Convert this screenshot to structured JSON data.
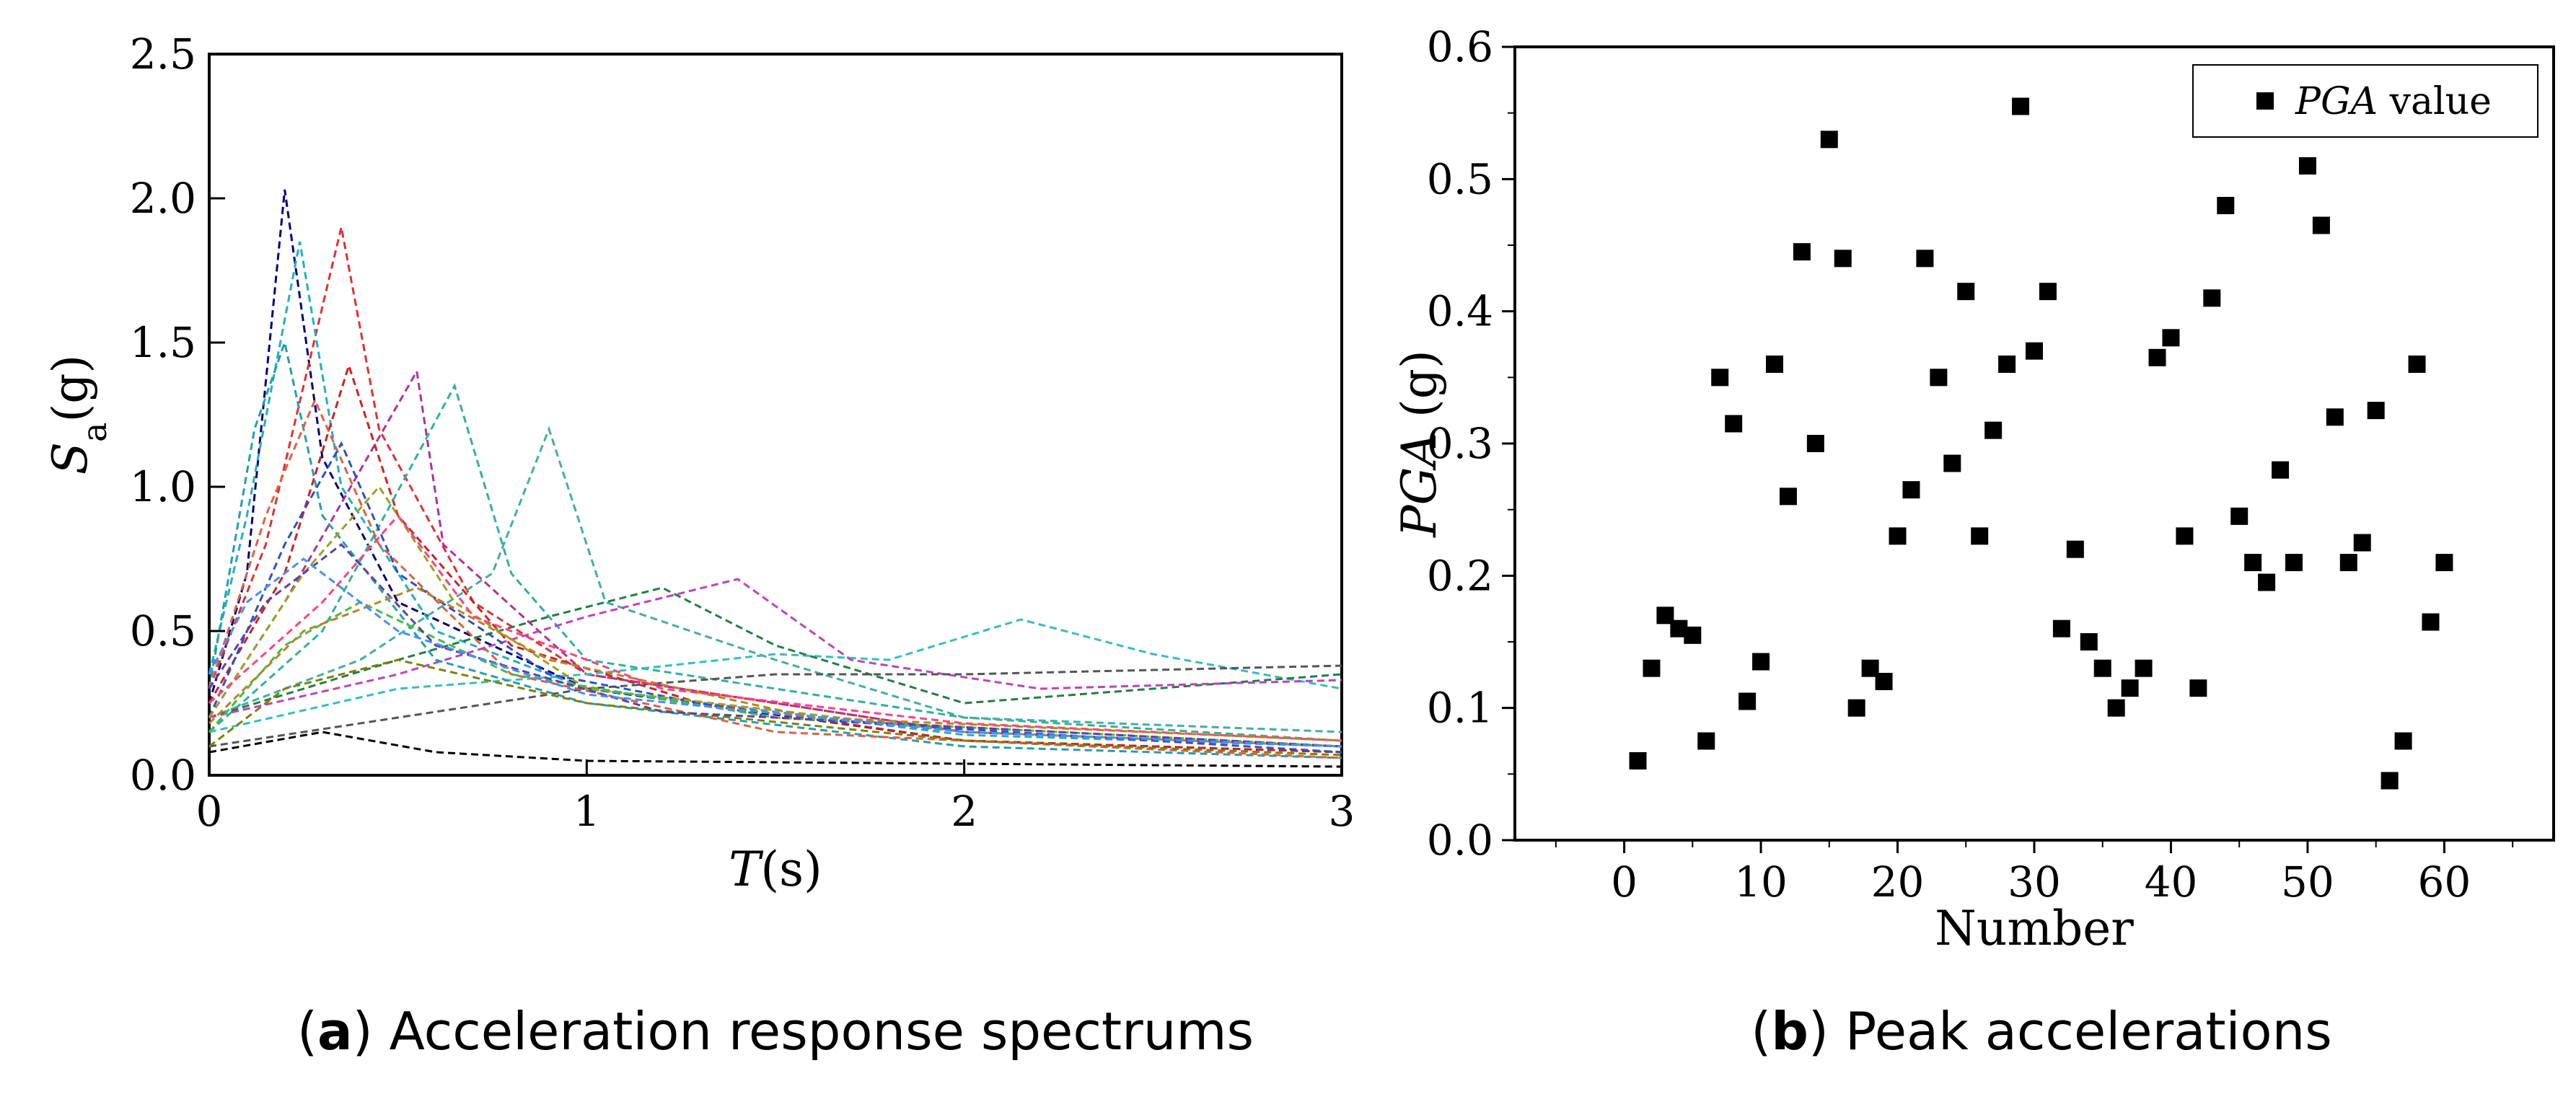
{
  "chart_data": [
    {
      "type": "line",
      "panel": "a",
      "caption_letter": "a",
      "caption": "Acceleration response spectrums",
      "xlabel_italic": "T",
      "xlabel_unit": "(s)",
      "ylabel_main": "S",
      "ylabel_sub": "a",
      "ylabel_unit": "(g)",
      "xlim": [
        0,
        3
      ],
      "ylim": [
        0,
        2.5
      ],
      "x_ticks": [
        "0",
        "1",
        "2",
        "3"
      ],
      "y_ticks": [
        "0.0",
        "0.5",
        "1.0",
        "1.5",
        "2.0",
        "2.5"
      ],
      "series_count": 60,
      "representative_series": [
        {
          "color": "#000080",
          "points": [
            [
              0,
              0.25
            ],
            [
              0.1,
              0.7
            ],
            [
              0.2,
              2.03
            ],
            [
              0.3,
              1.1
            ],
            [
              0.5,
              0.6
            ],
            [
              1,
              0.3
            ],
            [
              2,
              0.12
            ],
            [
              3,
              0.08
            ]
          ]
        },
        {
          "color": "#e03030",
          "points": [
            [
              0,
              0.3
            ],
            [
              0.15,
              0.8
            ],
            [
              0.35,
              1.9
            ],
            [
              0.45,
              1.2
            ],
            [
              0.7,
              0.6
            ],
            [
              1,
              0.35
            ],
            [
              2,
              0.15
            ],
            [
              3,
              0.1
            ]
          ]
        },
        {
          "color": "#20b0c0",
          "points": [
            [
              0,
              0.35
            ],
            [
              0.1,
              0.9
            ],
            [
              0.24,
              1.85
            ],
            [
              0.35,
              1.0
            ],
            [
              0.6,
              0.5
            ],
            [
              1,
              0.3
            ],
            [
              2,
              0.14
            ],
            [
              3,
              0.1
            ]
          ]
        },
        {
          "color": "#d02020",
          "points": [
            [
              0,
              0.25
            ],
            [
              0.2,
              0.7
            ],
            [
              0.37,
              1.42
            ],
            [
              0.5,
              0.9
            ],
            [
              0.8,
              0.45
            ],
            [
              1.3,
              0.25
            ],
            [
              2,
              0.12
            ],
            [
              3,
              0.08
            ]
          ]
        },
        {
          "color": "#b030a0",
          "points": [
            [
              0,
              0.2
            ],
            [
              0.2,
              0.6
            ],
            [
              0.55,
              1.4
            ],
            [
              0.62,
              0.8
            ],
            [
              1,
              0.35
            ],
            [
              2,
              0.15
            ],
            [
              3,
              0.1
            ]
          ]
        },
        {
          "color": "#30b0a0",
          "points": [
            [
              0,
              0.15
            ],
            [
              0.3,
              0.5
            ],
            [
              0.65,
              1.35
            ],
            [
              0.8,
              0.7
            ],
            [
              1,
              0.4
            ],
            [
              2,
              0.2
            ],
            [
              3,
              0.12
            ]
          ]
        },
        {
          "color": "#40b0a0",
          "points": [
            [
              0,
              0.2
            ],
            [
              0.4,
              0.4
            ],
            [
              0.75,
              0.7
            ],
            [
              0.9,
              1.2
            ],
            [
              1.05,
              0.6
            ],
            [
              1.5,
              0.4
            ],
            [
              2,
              0.2
            ],
            [
              3,
              0.15
            ]
          ]
        },
        {
          "color": "#30c0c0",
          "points": [
            [
              0,
              0.15
            ],
            [
              0.5,
              0.3
            ],
            [
              1,
              0.35
            ],
            [
              1.5,
              0.42
            ],
            [
              1.8,
              0.4
            ],
            [
              2.15,
              0.54
            ],
            [
              2.5,
              0.42
            ],
            [
              3,
              0.3
            ]
          ]
        },
        {
          "color": "#208040",
          "points": [
            [
              0,
              0.2
            ],
            [
              0.5,
              0.4
            ],
            [
              0.9,
              0.55
            ],
            [
              1.2,
              0.65
            ],
            [
              1.5,
              0.45
            ],
            [
              2,
              0.25
            ],
            [
              2.5,
              0.3
            ],
            [
              3,
              0.35
            ]
          ]
        },
        {
          "color": "#c040c0",
          "points": [
            [
              0,
              0.2
            ],
            [
              0.5,
              0.35
            ],
            [
              1,
              0.55
            ],
            [
              1.4,
              0.68
            ],
            [
              1.7,
              0.4
            ],
            [
              2.2,
              0.3
            ],
            [
              3,
              0.33
            ]
          ]
        },
        {
          "color": "#555555",
          "points": [
            [
              0,
              0.1
            ],
            [
              0.5,
              0.2
            ],
            [
              1,
              0.3
            ],
            [
              1.5,
              0.35
            ],
            [
              2,
              0.35
            ],
            [
              3,
              0.38
            ]
          ]
        },
        {
          "color": "#20a0b0",
          "points": [
            [
              0,
              0.3
            ],
            [
              0.12,
              1.2
            ],
            [
              0.2,
              1.5
            ],
            [
              0.3,
              0.9
            ],
            [
              0.6,
              0.4
            ],
            [
              1,
              0.25
            ],
            [
              2,
              0.1
            ],
            [
              3,
              0.06
            ]
          ]
        },
        {
          "color": "#e06040",
          "points": [
            [
              0,
              0.3
            ],
            [
              0.15,
              0.9
            ],
            [
              0.28,
              1.3
            ],
            [
              0.45,
              0.8
            ],
            [
              0.8,
              0.35
            ],
            [
              1.5,
              0.15
            ],
            [
              3,
              0.06
            ]
          ]
        },
        {
          "color": "#3050c0",
          "points": [
            [
              0,
              0.2
            ],
            [
              0.2,
              0.8
            ],
            [
              0.35,
              1.15
            ],
            [
              0.5,
              0.7
            ],
            [
              0.9,
              0.35
            ],
            [
              1.5,
              0.2
            ],
            [
              3,
              0.08
            ]
          ]
        },
        {
          "color": "#a0a020",
          "points": [
            [
              0,
              0.2
            ],
            [
              0.25,
              0.7
            ],
            [
              0.45,
              1.0
            ],
            [
              0.65,
              0.6
            ],
            [
              1,
              0.3
            ],
            [
              2,
              0.15
            ],
            [
              3,
              0.1
            ]
          ]
        },
        {
          "color": "#ff4080",
          "points": [
            [
              0,
              0.25
            ],
            [
              0.3,
              0.6
            ],
            [
              0.5,
              0.9
            ],
            [
              0.7,
              0.55
            ],
            [
              1.2,
              0.3
            ],
            [
              2,
              0.18
            ],
            [
              3,
              0.12
            ]
          ]
        },
        {
          "color": "#40c040",
          "points": [
            [
              0,
              0.15
            ],
            [
              0.2,
              0.45
            ],
            [
              0.4,
              0.6
            ],
            [
              0.8,
              0.35
            ],
            [
              1.5,
              0.2
            ],
            [
              3,
              0.1
            ]
          ]
        },
        {
          "color": "#808000",
          "points": [
            [
              0,
              0.1
            ],
            [
              0.2,
              0.3
            ],
            [
              0.5,
              0.4
            ],
            [
              1,
              0.25
            ],
            [
              2,
              0.12
            ],
            [
              3,
              0.07
            ]
          ]
        },
        {
          "color": "#000000",
          "points": [
            [
              0,
              0.08
            ],
            [
              0.3,
              0.15
            ],
            [
              0.6,
              0.08
            ],
            [
              1,
              0.05
            ],
            [
              2,
              0.04
            ],
            [
              3,
              0.03
            ]
          ]
        },
        {
          "color": "#6040a0",
          "points": [
            [
              0,
              0.3
            ],
            [
              0.15,
              0.6
            ],
            [
              0.35,
              0.8
            ],
            [
              0.6,
              0.45
            ],
            [
              1.2,
              0.22
            ],
            [
              3,
              0.1
            ]
          ]
        },
        {
          "color": "#c08020",
          "points": [
            [
              0,
              0.18
            ],
            [
              0.25,
              0.5
            ],
            [
              0.55,
              0.65
            ],
            [
              0.9,
              0.4
            ],
            [
              1.6,
              0.2
            ],
            [
              3,
              0.12
            ]
          ]
        },
        {
          "color": "#4090ff",
          "points": [
            [
              0,
              0.35
            ],
            [
              0.1,
              0.6
            ],
            [
              0.25,
              0.75
            ],
            [
              0.5,
              0.5
            ],
            [
              1,
              0.28
            ],
            [
              2,
              0.15
            ],
            [
              3,
              0.1
            ]
          ]
        }
      ]
    },
    {
      "type": "scatter",
      "panel": "b",
      "caption_letter": "b",
      "caption": "Peak accelerations",
      "xlabel": "Number",
      "ylabel_italic": "PGA",
      "ylabel_unit": "(g)",
      "xlim": [
        -8,
        68
      ],
      "ylim": [
        0,
        0.6
      ],
      "x_ticks": [
        "0",
        "10",
        "20",
        "30",
        "40",
        "50",
        "60"
      ],
      "y_ticks": [
        "0.0",
        "0.1",
        "0.2",
        "0.3",
        "0.4",
        "0.5",
        "0.6"
      ],
      "legend_italic": "PGA",
      "legend_rest": "value",
      "legend_position": "top-right",
      "x": [
        1,
        2,
        3,
        4,
        5,
        6,
        7,
        8,
        9,
        10,
        11,
        12,
        13,
        14,
        15,
        16,
        17,
        18,
        19,
        20,
        21,
        22,
        23,
        24,
        25,
        26,
        27,
        28,
        29,
        30,
        31,
        32,
        33,
        34,
        35,
        36,
        37,
        38,
        39,
        40,
        41,
        42,
        43,
        44,
        45,
        46,
        47,
        48,
        49,
        50,
        51,
        52,
        53,
        54,
        55,
        56,
        57,
        58,
        59,
        60
      ],
      "y": [
        0.06,
        0.13,
        0.17,
        0.16,
        0.155,
        0.075,
        0.35,
        0.315,
        0.105,
        0.135,
        0.36,
        0.26,
        0.445,
        0.3,
        0.53,
        0.44,
        0.1,
        0.13,
        0.12,
        0.23,
        0.265,
        0.44,
        0.35,
        0.285,
        0.415,
        0.23,
        0.31,
        0.36,
        0.555,
        0.37,
        0.415,
        0.16,
        0.22,
        0.15,
        0.13,
        0.1,
        0.115,
        0.13,
        0.365,
        0.38,
        0.23,
        0.115,
        0.41,
        0.48,
        0.245,
        0.21,
        0.195,
        0.28,
        0.21,
        0.51,
        0.465,
        0.32,
        0.21,
        0.225,
        0.325,
        0.045,
        0.075,
        0.36,
        0.165,
        0.21
      ]
    }
  ]
}
